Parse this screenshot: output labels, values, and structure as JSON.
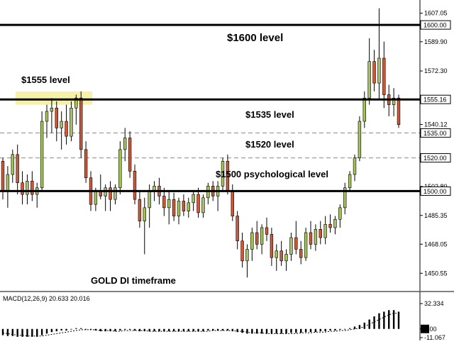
{
  "chart_data": {
    "type": "candlestick",
    "instrument_caption": "GOLD DI timeframe",
    "price_axis": {
      "ylim": [
        1440.0,
        1615.0
      ],
      "ticks": [
        "1607.05",
        "1589.90",
        "1572.30",
        "1555.16",
        "1540.12",
        "1520.00",
        "1502.80",
        "1485.35",
        "1468.05",
        "1450.55"
      ],
      "tick_values": [
        1607.05,
        1589.9,
        1572.3,
        1555.16,
        1540.12,
        1520.0,
        1502.8,
        1485.35,
        1468.05,
        1450.55
      ]
    },
    "levels": [
      {
        "value": 1600.0,
        "label": "1600.00",
        "style": "solid",
        "annotation": "$1600 level"
      },
      {
        "value": 1555.16,
        "label": "1555.16",
        "style": "solid",
        "annotation": "$1555 level"
      },
      {
        "value": 1535.0,
        "label": "1535.00",
        "style": "dashed",
        "annotation": "$1535 level"
      },
      {
        "value": 1520.0,
        "label": "1520.00",
        "style": "dashed",
        "annotation": "$1520 level"
      },
      {
        "value": 1500.0,
        "label": "1500.00",
        "style": "solid",
        "annotation": "$1500 psychological level"
      }
    ],
    "highlight_zone": {
      "from": 1552,
      "to": 1560
    },
    "colors": {
      "bull": "#a4c45a",
      "bear": "#cc5a3a",
      "level": "#000000",
      "dashed": "#888888",
      "zone": "#f6f0a8",
      "macd": "#000000",
      "signal": "#000000"
    },
    "candles": [
      [
        1518,
        1520,
        1495,
        1500
      ],
      [
        1500,
        1515,
        1490,
        1510
      ],
      [
        1510,
        1525,
        1505,
        1522
      ],
      [
        1522,
        1528,
        1498,
        1505
      ],
      [
        1505,
        1512,
        1492,
        1498
      ],
      [
        1498,
        1510,
        1492,
        1506
      ],
      [
        1506,
        1512,
        1494,
        1498
      ],
      [
        1498,
        1505,
        1490,
        1502
      ],
      [
        1502,
        1548,
        1500,
        1542
      ],
      [
        1542,
        1552,
        1532,
        1548
      ],
      [
        1548,
        1556,
        1535,
        1550
      ],
      [
        1550,
        1554,
        1530,
        1538
      ],
      [
        1538,
        1548,
        1525,
        1542
      ],
      [
        1542,
        1552,
        1528,
        1533
      ],
      [
        1533,
        1554,
        1530,
        1550
      ],
      [
        1550,
        1558,
        1540,
        1556
      ],
      [
        1556,
        1560,
        1520,
        1525
      ],
      [
        1525,
        1530,
        1505,
        1508
      ],
      [
        1508,
        1512,
        1488,
        1492
      ],
      [
        1492,
        1502,
        1488,
        1500
      ],
      [
        1500,
        1510,
        1495,
        1497
      ],
      [
        1497,
        1504,
        1488,
        1502
      ],
      [
        1502,
        1506,
        1488,
        1495
      ],
      [
        1495,
        1504,
        1492,
        1502
      ],
      [
        1502,
        1530,
        1498,
        1525
      ],
      [
        1525,
        1538,
        1518,
        1532
      ],
      [
        1532,
        1536,
        1508,
        1512
      ],
      [
        1512,
        1516,
        1492,
        1495
      ],
      [
        1495,
        1500,
        1478,
        1482
      ],
      [
        1482,
        1496,
        1462,
        1490
      ],
      [
        1490,
        1504,
        1478,
        1500
      ],
      [
        1500,
        1506,
        1494,
        1503
      ],
      [
        1503,
        1508,
        1492,
        1497
      ],
      [
        1497,
        1502,
        1485,
        1490
      ],
      [
        1490,
        1500,
        1480,
        1495
      ],
      [
        1495,
        1499,
        1482,
        1485
      ],
      [
        1485,
        1496,
        1480,
        1494
      ],
      [
        1494,
        1498,
        1485,
        1488
      ],
      [
        1488,
        1496,
        1484,
        1493
      ],
      [
        1493,
        1500,
        1488,
        1498
      ],
      [
        1498,
        1502,
        1484,
        1487
      ],
      [
        1487,
        1498,
        1484,
        1496
      ],
      [
        1496,
        1505,
        1492,
        1503
      ],
      [
        1503,
        1506,
        1494,
        1497
      ],
      [
        1497,
        1506,
        1488,
        1503
      ],
      [
        1503,
        1520,
        1500,
        1518
      ],
      [
        1518,
        1522,
        1498,
        1500
      ],
      [
        1500,
        1504,
        1482,
        1485
      ],
      [
        1485,
        1488,
        1465,
        1470
      ],
      [
        1470,
        1475,
        1454,
        1458
      ],
      [
        1458,
        1468,
        1448,
        1465
      ],
      [
        1465,
        1478,
        1458,
        1475
      ],
      [
        1475,
        1482,
        1465,
        1468
      ],
      [
        1468,
        1480,
        1462,
        1478
      ],
      [
        1478,
        1484,
        1470,
        1474
      ],
      [
        1474,
        1478,
        1455,
        1460
      ],
      [
        1460,
        1468,
        1452,
        1464
      ],
      [
        1464,
        1470,
        1455,
        1458
      ],
      [
        1458,
        1465,
        1452,
        1462
      ],
      [
        1462,
        1475,
        1458,
        1472
      ],
      [
        1472,
        1482,
        1462,
        1465
      ],
      [
        1465,
        1470,
        1456,
        1460
      ],
      [
        1460,
        1478,
        1458,
        1475
      ],
      [
        1475,
        1482,
        1465,
        1468
      ],
      [
        1468,
        1480,
        1464,
        1477
      ],
      [
        1477,
        1482,
        1468,
        1472
      ],
      [
        1472,
        1485,
        1468,
        1480
      ],
      [
        1480,
        1486,
        1475,
        1478
      ],
      [
        1478,
        1485,
        1474,
        1483
      ],
      [
        1483,
        1492,
        1478,
        1490
      ],
      [
        1490,
        1505,
        1486,
        1502
      ],
      [
        1502,
        1512,
        1500,
        1510
      ],
      [
        1510,
        1522,
        1506,
        1520
      ],
      [
        1520,
        1545,
        1518,
        1542
      ],
      [
        1542,
        1560,
        1538,
        1556
      ],
      [
        1556,
        1592,
        1552,
        1578
      ],
      [
        1578,
        1585,
        1560,
        1565
      ],
      [
        1565,
        1610,
        1555,
        1580
      ],
      [
        1580,
        1590,
        1550,
        1558
      ],
      [
        1558,
        1564,
        1545,
        1552
      ],
      [
        1552,
        1562,
        1545,
        1556
      ],
      [
        1556,
        1558,
        1538,
        1540
      ]
    ],
    "macd": {
      "label": "MACD(12,26,9) 20.633 20.016",
      "ticks": [
        "32.334",
        "0.00",
        "-11.067"
      ],
      "tick_values": [
        32.334,
        0.0,
        -11.067
      ],
      "ylim": [
        -11.067,
        32.334
      ],
      "histogram": [
        -8,
        -9,
        -9,
        -10,
        -10,
        -10,
        -10,
        -10,
        -8,
        -6,
        -4,
        -3,
        -2,
        -2,
        0,
        1,
        1,
        0,
        -1,
        -2,
        -3,
        -3,
        -3,
        -3,
        -2,
        -1,
        -1,
        -2,
        -3,
        -3,
        -3,
        -3,
        -3,
        -3,
        -3,
        -3,
        -3,
        -3,
        -3,
        -3,
        -3,
        -3,
        -2,
        -2,
        -2,
        -2,
        -2,
        -3,
        -4,
        -5,
        -6,
        -6,
        -6,
        -6,
        -6,
        -6,
        -6,
        -6,
        -6,
        -5,
        -5,
        -5,
        -4,
        -4,
        -4,
        -3,
        -3,
        -2,
        -2,
        -1,
        0,
        1,
        3,
        5,
        8,
        12,
        16,
        20,
        22,
        24,
        24,
        22
      ],
      "signal": [
        -5,
        -6,
        -7,
        -8,
        -8,
        -9,
        -9,
        -9,
        -9,
        -8,
        -7,
        -6,
        -5,
        -4,
        -3,
        -2,
        -1,
        -1,
        -1,
        -1,
        -2,
        -2,
        -2,
        -3,
        -3,
        -2,
        -2,
        -2,
        -2,
        -2,
        -3,
        -3,
        -3,
        -3,
        -3,
        -3,
        -3,
        -3,
        -3,
        -3,
        -3,
        -3,
        -3,
        -2,
        -2,
        -2,
        -2,
        -2,
        -3,
        -3,
        -4,
        -5,
        -5,
        -5,
        -6,
        -6,
        -6,
        -6,
        -6,
        -6,
        -6,
        -5,
        -5,
        -5,
        -4,
        -4,
        -4,
        -3,
        -3,
        -2,
        -2,
        -1,
        0,
        1,
        3,
        6,
        9,
        12,
        15,
        18,
        20,
        20
      ]
    }
  }
}
